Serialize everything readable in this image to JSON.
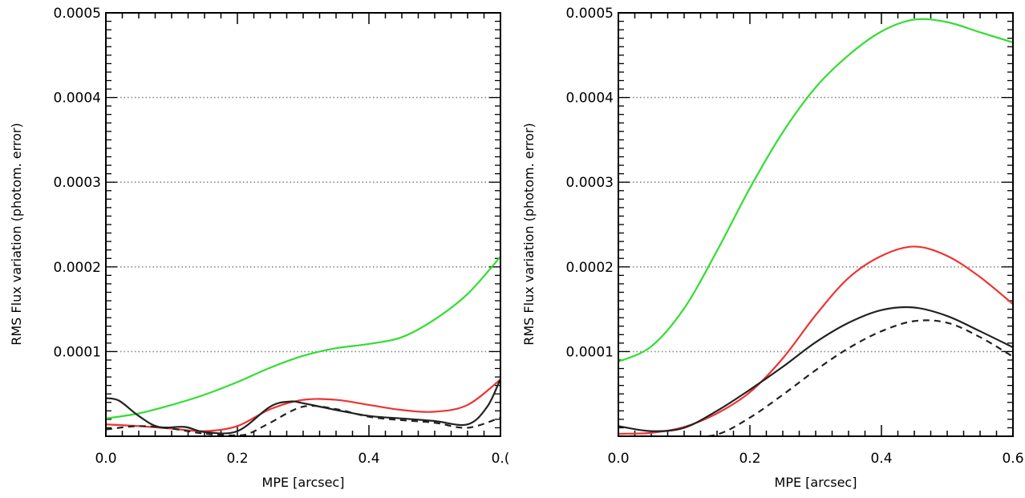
{
  "chart_data": [
    {
      "type": "line",
      "xlabel": "MPE [arcsec]",
      "ylabel": "RMS Flux variation (photom. error)",
      "xlim": [
        0.0,
        0.6
      ],
      "ylim": [
        0.0,
        0.0005
      ],
      "xticks": [
        "0.0",
        "0.2",
        "0.4",
        "0.("
      ],
      "yticks": [
        "0.0001",
        "0.0002",
        "0.0003",
        "0.0004",
        "0.0005"
      ],
      "grid": "horizontal dotted",
      "series": [
        {
          "color": "#33dd33",
          "style": "solid",
          "x": [
            0.0,
            0.05,
            0.1,
            0.15,
            0.2,
            0.25,
            0.3,
            0.35,
            0.4,
            0.45,
            0.5,
            0.55,
            0.6
          ],
          "y": [
            2.1e-05,
            2.7e-05,
            3.7e-05,
            4.9e-05,
            6.4e-05,
            8.1e-05,
            9.5e-05,
            0.000104,
            0.000109,
            0.000117,
            0.000138,
            0.000168,
            0.000212
          ]
        },
        {
          "color": "#ee3333",
          "style": "solid",
          "x": [
            0.0,
            0.05,
            0.1,
            0.15,
            0.2,
            0.25,
            0.3,
            0.35,
            0.4,
            0.45,
            0.5,
            0.55,
            0.6
          ],
          "y": [
            1.4e-05,
            1.2e-05,
            9e-06,
            6e-06,
            1.2e-05,
            3.2e-05,
            4.3e-05,
            4.3e-05,
            3.7e-05,
            3.1e-05,
            2.9e-05,
            3.7e-05,
            6.7e-05
          ]
        },
        {
          "color": "#222222",
          "style": "solid",
          "x": [
            0.0,
            0.02,
            0.05,
            0.08,
            0.12,
            0.15,
            0.2,
            0.25,
            0.28,
            0.3,
            0.35,
            0.4,
            0.45,
            0.5,
            0.55,
            0.58,
            0.6
          ],
          "y": [
            4.5e-05,
            4.2e-05,
            2.4e-05,
            1.1e-05,
            1.1e-05,
            5e-06,
            6e-06,
            3.5e-05,
            4.1e-05,
            3.9e-05,
            3.1e-05,
            2.4e-05,
            2.1e-05,
            1.8e-05,
            1.4e-05,
            3.5e-05,
            6.8e-05
          ]
        },
        {
          "color": "#222222",
          "style": "dashed",
          "x": [
            0.0,
            0.05,
            0.1,
            0.15,
            0.2,
            0.22,
            0.25,
            0.3,
            0.35,
            0.4,
            0.45,
            0.5,
            0.55,
            0.6
          ],
          "y": [
            8e-06,
            1.2e-05,
            9e-06,
            3e-06,
            1e-06,
            4e-06,
            1.6e-05,
            3.5e-05,
            3.2e-05,
            2.3e-05,
            1.9e-05,
            1.6e-05,
            1e-05,
            2.2e-05
          ]
        }
      ]
    },
    {
      "type": "line",
      "xlabel": "MPE [arcsec]",
      "ylabel": "RMS Flux variation (photom. error)",
      "xlim": [
        0.0,
        0.6
      ],
      "ylim": [
        0.0,
        0.0005
      ],
      "xticks": [
        "0.0",
        "0.2",
        "0.4",
        "0.6"
      ],
      "yticks": [
        "0.0001",
        "0.0002",
        "0.0003",
        "0.0004",
        "0.0005"
      ],
      "grid": "horizontal dotted",
      "series": [
        {
          "color": "#33dd33",
          "style": "solid",
          "x": [
            0.0,
            0.05,
            0.1,
            0.15,
            0.2,
            0.25,
            0.3,
            0.35,
            0.4,
            0.45,
            0.5,
            0.55,
            0.6
          ],
          "y": [
            8.8e-05,
            0.000106,
            0.000151,
            0.000219,
            0.000293,
            0.000359,
            0.000412,
            0.00045,
            0.000478,
            0.000492,
            0.000489,
            0.000477,
            0.000465
          ]
        },
        {
          "color": "#ee3333",
          "style": "solid",
          "x": [
            0.0,
            0.05,
            0.1,
            0.15,
            0.2,
            0.25,
            0.3,
            0.35,
            0.4,
            0.45,
            0.5,
            0.55,
            0.6
          ],
          "y": [
            3e-06,
            4e-06,
            1.1e-05,
            2.7e-05,
            5.2e-05,
            9.2e-05,
            0.000143,
            0.000187,
            0.000213,
            0.000224,
            0.000213,
            0.000188,
            0.000156
          ]
        },
        {
          "color": "#222222",
          "style": "solid",
          "x": [
            0.0,
            0.05,
            0.1,
            0.15,
            0.2,
            0.25,
            0.3,
            0.35,
            0.4,
            0.45,
            0.5,
            0.55,
            0.6
          ],
          "y": [
            1.2e-05,
            6e-06,
            1e-05,
            3e-05,
            5.5e-05,
            8.2e-05,
            0.000111,
            0.000134,
            0.000149,
            0.000152,
            0.000142,
            0.000124,
            0.000105
          ]
        },
        {
          "color": "#222222",
          "style": "dashed",
          "x": [
            0.0,
            0.05,
            0.1,
            0.15,
            0.2,
            0.25,
            0.3,
            0.35,
            0.4,
            0.45,
            0.5,
            0.55,
            0.6
          ],
          "y": [
            0.0,
            0.0,
            0.0,
            2e-06,
            2.2e-05,
            4.9e-05,
            7.8e-05,
            0.000104,
            0.000124,
            0.000136,
            0.000134,
            0.000117,
            9.4e-05
          ]
        }
      ]
    }
  ]
}
